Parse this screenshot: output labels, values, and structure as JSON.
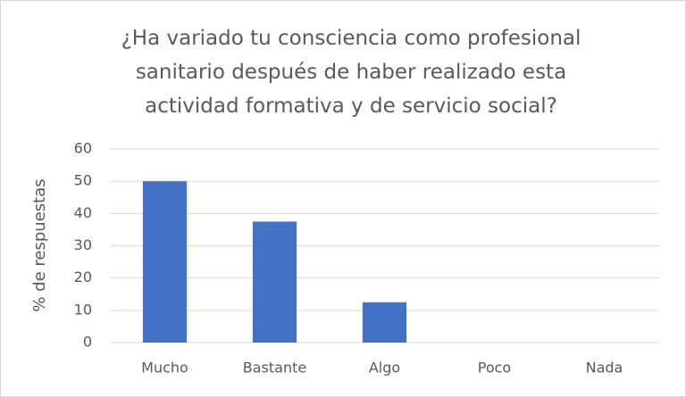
{
  "chart_data": {
    "type": "bar",
    "title": "¿Ha variado tu consciencia como profesional sanitario después de haber realizado esta actividad formativa y de servicio social?",
    "y_label": "% de respuestas",
    "categories": [
      "Mucho",
      "Bastante",
      "Algo",
      "Poco",
      "Nada"
    ],
    "values": [
      50,
      37.5,
      12.5,
      0,
      0
    ],
    "color": "#4472c4",
    "ylim": [
      0,
      60
    ],
    "yticks": [
      0,
      10,
      20,
      30,
      40,
      50,
      60
    ],
    "grid": true
  }
}
